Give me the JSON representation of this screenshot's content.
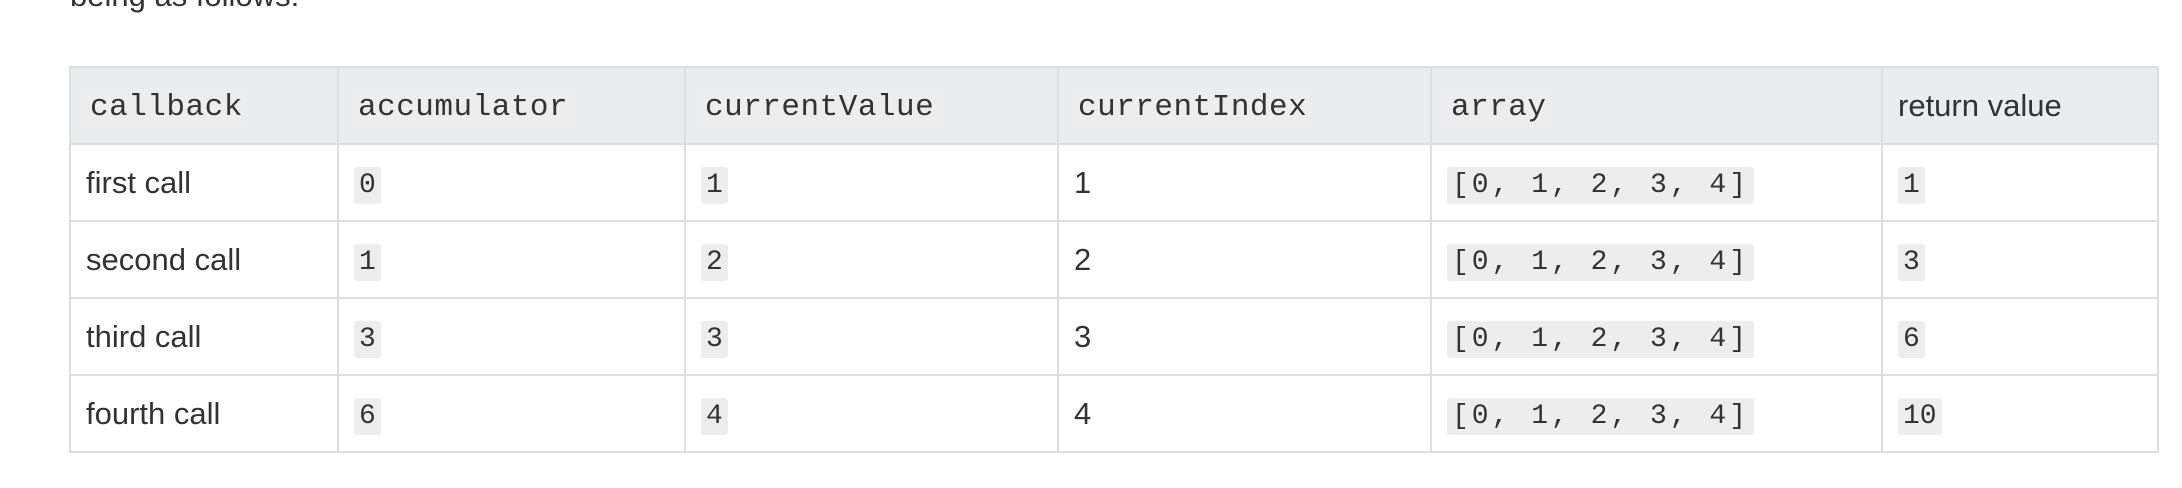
{
  "intro": {
    "text": "being as follows:"
  },
  "table": {
    "headers": [
      {
        "label": "callback",
        "code": true
      },
      {
        "label": "accumulator",
        "code": true
      },
      {
        "label": "currentValue",
        "code": true
      },
      {
        "label": "currentIndex",
        "code": true
      },
      {
        "label": "array",
        "code": true
      },
      {
        "label": "return value",
        "code": false
      }
    ],
    "rows": [
      {
        "callback": "first call",
        "accumulator": "0",
        "currentValue": "1",
        "currentIndex": "1",
        "array": "[0, 1, 2, 3, 4]",
        "return_value": "1"
      },
      {
        "callback": "second call",
        "accumulator": "1",
        "currentValue": "2",
        "currentIndex": "2",
        "array": "[0, 1, 2, 3, 4]",
        "return_value": "3"
      },
      {
        "callback": "third call",
        "accumulator": "3",
        "currentValue": "3",
        "currentIndex": "3",
        "array": "[0, 1, 2, 3, 4]",
        "return_value": "6"
      },
      {
        "callback": "fourth call",
        "accumulator": "6",
        "currentValue": "4",
        "currentIndex": "4",
        "array": "[0, 1, 2, 3, 4]",
        "return_value": "10"
      }
    ]
  }
}
